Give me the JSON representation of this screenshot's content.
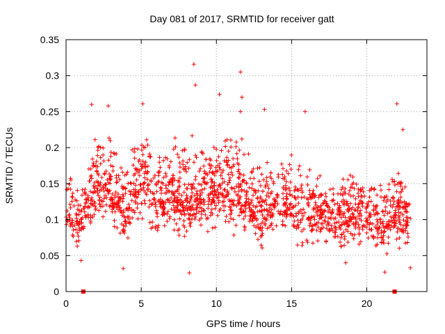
{
  "chart_data": {
    "type": "scatter",
    "title": "Day 081 of 2017, SRMTID for receiver gatt",
    "xlabel": "GPS time / hours",
    "ylabel": "SRMTID / TECUs",
    "xlim": [
      0,
      24
    ],
    "ylim": [
      0,
      0.35
    ],
    "xticks": [
      0,
      5,
      10,
      15,
      20
    ],
    "yticks": [
      0,
      0.05,
      0.1,
      0.15,
      0.2,
      0.25,
      0.3,
      0.35
    ],
    "ytick_labels": [
      "0",
      "0.05",
      "0.1",
      "0.15",
      "0.2",
      "0.25",
      "0.3",
      "0.35"
    ],
    "grid": true,
    "marker": "plus",
    "color": "#ff0000",
    "x_range_of_data": [
      0,
      22.9
    ],
    "notable_points": [
      {
        "x": 8.5,
        "y": 0.316
      },
      {
        "x": 11.6,
        "y": 0.305
      },
      {
        "x": 8.6,
        "y": 0.287
      },
      {
        "x": 10.2,
        "y": 0.274
      },
      {
        "x": 11.7,
        "y": 0.27
      },
      {
        "x": 22.0,
        "y": 0.261
      },
      {
        "x": 1.7,
        "y": 0.26
      },
      {
        "x": 5.1,
        "y": 0.261
      },
      {
        "x": 2.8,
        "y": 0.258
      },
      {
        "x": 11.6,
        "y": 0.25
      },
      {
        "x": 13.2,
        "y": 0.253
      },
      {
        "x": 15.9,
        "y": 0.25
      },
      {
        "x": 22.4,
        "y": 0.225
      },
      {
        "x": 8.2,
        "y": 0.026
      },
      {
        "x": 21.2,
        "y": 0.027
      },
      {
        "x": 3.8,
        "y": 0.032
      },
      {
        "x": 22.9,
        "y": 0.033
      },
      {
        "x": 1.0,
        "y": 0.043
      },
      {
        "x": 18.6,
        "y": 0.04
      }
    ],
    "hourly_envelope": {
      "hours": [
        0,
        1,
        2,
        3,
        4,
        5,
        6,
        7,
        8,
        9,
        10,
        11,
        12,
        13,
        14,
        15,
        16,
        17,
        18,
        19,
        20,
        21,
        22,
        23
      ],
      "low": [
        0.07,
        0.05,
        0.08,
        0.09,
        0.04,
        0.09,
        0.07,
        0.07,
        0.05,
        0.07,
        0.06,
        0.06,
        0.07,
        0.05,
        0.06,
        0.06,
        0.05,
        0.06,
        0.05,
        0.05,
        0.05,
        0.04,
        0.05,
        0.04
      ],
      "mean": [
        0.11,
        0.1,
        0.15,
        0.14,
        0.1,
        0.17,
        0.12,
        0.13,
        0.13,
        0.13,
        0.15,
        0.14,
        0.13,
        0.11,
        0.13,
        0.12,
        0.11,
        0.11,
        0.1,
        0.11,
        0.1,
        0.09,
        0.11,
        0.1
      ],
      "high": [
        0.19,
        0.16,
        0.23,
        0.23,
        0.2,
        0.24,
        0.22,
        0.21,
        0.25,
        0.22,
        0.24,
        0.23,
        0.22,
        0.19,
        0.23,
        0.2,
        0.21,
        0.16,
        0.17,
        0.18,
        0.17,
        0.16,
        0.2,
        0.14
      ]
    },
    "zero_markers": [
      {
        "x": 1.15,
        "y": 0
      },
      {
        "x": 21.85,
        "y": 0
      }
    ]
  }
}
